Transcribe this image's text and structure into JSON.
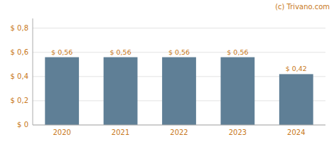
{
  "chart_data": {
    "type": "bar",
    "annotation": "(c) Trivano.com",
    "categories": [
      "2020",
      "2021",
      "2022",
      "2023",
      "2024"
    ],
    "values": [
      0.56,
      0.56,
      0.56,
      0.56,
      0.42
    ],
    "value_labels": [
      "$ 0,56",
      "$ 0,56",
      "$ 0,56",
      "$ 0,56",
      "$ 0,42"
    ],
    "data_labels": true,
    "color": "#5f7f96",
    "ylim": [
      0,
      0.88
    ],
    "yticks": [
      {
        "value": 0,
        "label": "$ 0"
      },
      {
        "value": 0.2,
        "label": "$ 0,2"
      },
      {
        "value": 0.4,
        "label": "$ 0,4"
      },
      {
        "value": 0.6,
        "label": "$ 0,6"
      },
      {
        "value": 0.8,
        "label": "$ 0,8"
      }
    ],
    "grid": true
  }
}
